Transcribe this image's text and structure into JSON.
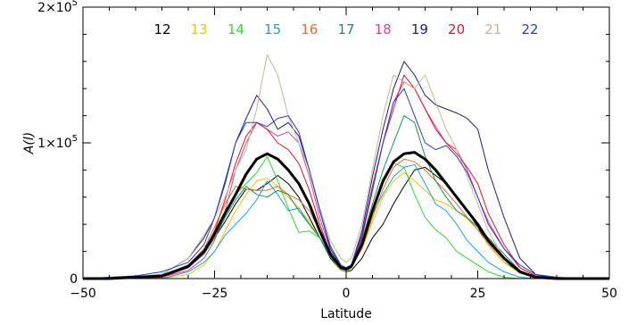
{
  "chart_data": {
    "type": "line",
    "title": "",
    "xlabel": "Latitude",
    "ylabel": "A(l)",
    "xlim": [
      -50,
      50
    ],
    "ylim": [
      0,
      200000
    ],
    "x_ticks": [
      -50,
      -25,
      0,
      25,
      50
    ],
    "x_tick_labels": [
      "−50",
      "−25",
      "0",
      "25",
      "50"
    ],
    "y_ticks": [
      0,
      100000,
      200000
    ],
    "y_tick_labels": [
      {
        "mantissa": "0",
        "exp": ""
      },
      {
        "mantissa": "1×10",
        "exp": "5"
      },
      {
        "mantissa": "2×10",
        "exp": "5"
      }
    ],
    "grid": false,
    "legend_position": "top-center",
    "series": [
      {
        "name": "12",
        "color": "#000000",
        "width": 1,
        "x": [
          -50,
          -45,
          -40,
          -35,
          -30,
          -27,
          -25,
          -23,
          -21,
          -19,
          -17,
          -15,
          -13,
          -11,
          -9,
          -7,
          -5,
          -3,
          -1,
          0,
          1,
          3,
          5,
          7,
          9,
          11,
          13,
          15,
          17,
          19,
          21,
          23,
          25,
          27,
          30,
          33,
          36,
          40,
          45,
          50
        ],
        "y": [
          0,
          0,
          0,
          2000,
          10000,
          20000,
          30000,
          42000,
          55000,
          66000,
          65000,
          70000,
          76000,
          70000,
          60000,
          45000,
          30000,
          15000,
          6000,
          5000,
          6000,
          15000,
          30000,
          40000,
          55000,
          68000,
          80000,
          82000,
          76000,
          70000,
          60000,
          50000,
          38000,
          25000,
          12000,
          5000,
          2000,
          0,
          0,
          0
        ]
      },
      {
        "name": "13",
        "color": "#f3c20a",
        "width": 1,
        "x": [
          -50,
          -45,
          -40,
          -35,
          -30,
          -27,
          -25,
          -23,
          -21,
          -19,
          -17,
          -15,
          -13,
          -11,
          -9,
          -7,
          -5,
          -3,
          -1,
          0,
          1,
          3,
          5,
          7,
          9,
          11,
          13,
          15,
          17,
          19,
          21,
          23,
          25,
          27,
          30,
          33,
          36,
          40,
          45,
          50
        ],
        "y": [
          0,
          0,
          0,
          0,
          3000,
          10000,
          20000,
          35000,
          50000,
          62000,
          72000,
          74000,
          68000,
          60000,
          52000,
          42000,
          30000,
          16000,
          6000,
          5000,
          8000,
          22000,
          42000,
          60000,
          72000,
          78000,
          72000,
          65000,
          58000,
          55000,
          50000,
          44000,
          36000,
          25000,
          12000,
          4000,
          1000,
          0,
          0,
          0
        ]
      },
      {
        "name": "14",
        "color": "#2edb2e",
        "width": 1,
        "x": [
          -50,
          -45,
          -40,
          -35,
          -30,
          -27,
          -25,
          -23,
          -21,
          -19,
          -17,
          -15,
          -13,
          -11,
          -9,
          -7,
          -5,
          -3,
          -1,
          0,
          1,
          3,
          5,
          7,
          9,
          11,
          13,
          15,
          17,
          19,
          21,
          23,
          25,
          27,
          30,
          33,
          36,
          40,
          45,
          50
        ],
        "y": [
          0,
          0,
          0,
          1000,
          8000,
          20000,
          35000,
          50000,
          62000,
          70000,
          78000,
          90000,
          72000,
          52000,
          34000,
          35000,
          30000,
          18000,
          8000,
          6000,
          9000,
          24000,
          48000,
          70000,
          85000,
          82000,
          62000,
          45000,
          36000,
          30000,
          20000,
          15000,
          10000,
          5000,
          1000,
          0,
          0,
          0,
          0,
          0
        ]
      },
      {
        "name": "15",
        "color": "#1aa3df",
        "width": 1,
        "x": [
          -50,
          -45,
          -40,
          -35,
          -30,
          -27,
          -25,
          -23,
          -21,
          -19,
          -17,
          -15,
          -13,
          -11,
          -9,
          -7,
          -5,
          -3,
          -1,
          0,
          1,
          3,
          5,
          7,
          9,
          11,
          13,
          15,
          17,
          19,
          21,
          23,
          25,
          27,
          30,
          33,
          36,
          40,
          45,
          50
        ],
        "y": [
          0,
          0,
          0,
          0,
          5000,
          12000,
          20000,
          32000,
          40000,
          48000,
          58000,
          72000,
          62000,
          50000,
          52000,
          40000,
          30000,
          17000,
          7000,
          6000,
          8000,
          25000,
          48000,
          62000,
          75000,
          82000,
          84000,
          70000,
          55000,
          50000,
          40000,
          28000,
          20000,
          12000,
          5000,
          1000,
          0,
          0,
          0,
          0
        ]
      },
      {
        "name": "16",
        "color": "#ef6a2a",
        "width": 1,
        "x": [
          -50,
          -45,
          -40,
          -35,
          -30,
          -27,
          -25,
          -23,
          -21,
          -19,
          -17,
          -15,
          -13,
          -11,
          -9,
          -7,
          -5,
          -3,
          -1,
          0,
          1,
          3,
          5,
          7,
          9,
          11,
          13,
          15,
          17,
          19,
          21,
          23,
          25,
          27,
          30,
          33,
          36,
          40,
          45,
          50
        ],
        "y": [
          0,
          0,
          0,
          2000,
          10000,
          22000,
          38000,
          55000,
          68000,
          66000,
          65000,
          65000,
          68000,
          62000,
          58000,
          50000,
          35000,
          18000,
          8000,
          7000,
          9000,
          22000,
          45000,
          66000,
          82000,
          88000,
          86000,
          80000,
          72000,
          64000,
          55000,
          45000,
          36000,
          26000,
          14000,
          5000,
          1000,
          0,
          0,
          0
        ]
      },
      {
        "name": "17",
        "color": "#1a8f63",
        "width": 1,
        "x": [
          -50,
          -45,
          -40,
          -35,
          -30,
          -27,
          -25,
          -23,
          -21,
          -19,
          -17,
          -15,
          -13,
          -11,
          -9,
          -7,
          -5,
          -3,
          -1,
          0,
          1,
          3,
          5,
          7,
          9,
          11,
          13,
          15,
          17,
          19,
          21,
          23,
          25,
          27,
          30,
          33,
          36,
          40,
          45,
          50
        ],
        "y": [
          0,
          0,
          0,
          1000,
          8000,
          18000,
          30000,
          45000,
          58000,
          68000,
          62000,
          60000,
          65000,
          62000,
          50000,
          40000,
          30000,
          16000,
          7000,
          6000,
          8000,
          28000,
          55000,
          80000,
          100000,
          120000,
          115000,
          90000,
          72000,
          60000,
          50000,
          45000,
          38000,
          30000,
          18000,
          6000,
          1000,
          0,
          0,
          0
        ]
      },
      {
        "name": "18",
        "color": "#e0409a",
        "width": 1,
        "x": [
          -50,
          -45,
          -40,
          -35,
          -30,
          -27,
          -25,
          -23,
          -21,
          -19,
          -17,
          -15,
          -13,
          -11,
          -9,
          -7,
          -5,
          -3,
          -1,
          0,
          1,
          3,
          5,
          7,
          9,
          11,
          13,
          15,
          17,
          19,
          21,
          23,
          25,
          27,
          30,
          33,
          36,
          40,
          45,
          50
        ],
        "y": [
          0,
          0,
          0,
          1000,
          6000,
          15000,
          28000,
          50000,
          80000,
          100000,
          115000,
          110000,
          105000,
          108000,
          100000,
          75000,
          45000,
          20000,
          8000,
          7000,
          9000,
          30000,
          65000,
          100000,
          130000,
          145000,
          140000,
          125000,
          112000,
          100000,
          95000,
          80000,
          60000,
          42000,
          22000,
          8000,
          2000,
          0,
          0,
          0
        ]
      },
      {
        "name": "19",
        "color": "#1a1a8c",
        "width": 1,
        "x": [
          -50,
          -45,
          -40,
          -35,
          -30,
          -27,
          -25,
          -23,
          -21,
          -19,
          -17,
          -15,
          -13,
          -11,
          -9,
          -7,
          -5,
          -3,
          -1,
          0,
          1,
          3,
          5,
          7,
          9,
          11,
          13,
          15,
          17,
          19,
          21,
          23,
          25,
          27,
          30,
          33,
          36,
          40,
          45,
          50
        ],
        "y": [
          0,
          0,
          1000,
          3000,
          15000,
          30000,
          45000,
          70000,
          100000,
          118000,
          135000,
          125000,
          110000,
          115000,
          105000,
          80000,
          50000,
          22000,
          9000,
          8000,
          10000,
          35000,
          75000,
          110000,
          140000,
          160000,
          150000,
          135000,
          128000,
          125000,
          122000,
          118000,
          110000,
          80000,
          45000,
          15000,
          3000,
          0,
          0,
          0
        ]
      },
      {
        "name": "20",
        "color": "#e8141e",
        "width": 1,
        "x": [
          -50,
          -45,
          -40,
          -35,
          -30,
          -27,
          -25,
          -23,
          -21,
          -19,
          -17,
          -15,
          -13,
          -11,
          -9,
          -7,
          -5,
          -3,
          -1,
          0,
          1,
          3,
          5,
          7,
          9,
          11,
          13,
          15,
          17,
          19,
          21,
          23,
          25,
          27,
          30,
          33,
          36,
          40,
          45,
          50
        ],
        "y": [
          0,
          0,
          0,
          1000,
          8000,
          20000,
          35000,
          58000,
          85000,
          105000,
          115000,
          110000,
          100000,
          95000,
          85000,
          65000,
          40000,
          18000,
          8000,
          7000,
          9000,
          30000,
          65000,
          100000,
          125000,
          150000,
          140000,
          125000,
          110000,
          100000,
          92000,
          82000,
          70000,
          48000,
          25000,
          8000,
          2000,
          0,
          0,
          0
        ]
      },
      {
        "name": "21",
        "color": "#c7b58f",
        "width": 1,
        "x": [
          -50,
          -45,
          -40,
          -35,
          -30,
          -27,
          -25,
          -23,
          -21,
          -19,
          -17,
          -15,
          -13,
          -11,
          -9,
          -7,
          -5,
          -3,
          -1,
          0,
          1,
          3,
          5,
          7,
          9,
          11,
          13,
          15,
          17,
          19,
          21,
          23,
          25,
          27,
          30,
          33,
          36,
          40,
          45,
          50
        ],
        "y": [
          0,
          0,
          1000,
          3000,
          15000,
          32000,
          45000,
          60000,
          80000,
          95000,
          125000,
          165000,
          150000,
          120000,
          100000,
          80000,
          52000,
          28000,
          15000,
          12000,
          15000,
          40000,
          80000,
          120000,
          150000,
          145000,
          140000,
          150000,
          130000,
          110000,
          95000,
          75000,
          55000,
          35000,
          15000,
          5000,
          1000,
          0,
          0,
          0
        ]
      },
      {
        "name": "22",
        "color": "#1f3fd6",
        "width": 1,
        "x": [
          -50,
          -45,
          -40,
          -35,
          -30,
          -27,
          -25,
          -23,
          -21,
          -19,
          -17,
          -15,
          -13,
          -11,
          -9,
          -7,
          -5,
          -3,
          -1,
          0,
          1,
          3,
          5,
          7,
          9,
          11,
          13,
          15,
          17,
          19,
          21,
          23,
          25,
          27,
          30,
          33,
          36,
          40,
          45,
          50
        ],
        "y": [
          0,
          1000,
          2000,
          5000,
          12000,
          25000,
          45000,
          72000,
          100000,
          115000,
          115000,
          112000,
          118000,
          120000,
          108000,
          80000,
          50000,
          24000,
          10000,
          8000,
          10000,
          32000,
          68000,
          100000,
          130000,
          140000,
          120000,
          100000,
          95000,
          98000,
          90000,
          78000,
          60000,
          40000,
          22000,
          10000,
          3000,
          1000,
          0,
          0
        ]
      },
      {
        "name": "",
        "color": "#000000",
        "width": 3,
        "x": [
          -50,
          -45,
          -40,
          -35,
          -30,
          -27,
          -25,
          -23,
          -21,
          -19,
          -17,
          -15,
          -13,
          -11,
          -9,
          -7,
          -5,
          -3,
          -1,
          0,
          1,
          3,
          5,
          7,
          9,
          11,
          13,
          15,
          17,
          19,
          21,
          23,
          25,
          27,
          30,
          33,
          36,
          40,
          45,
          50
        ],
        "y": [
          0,
          0,
          1000,
          2000,
          9000,
          20000,
          33000,
          48000,
          62000,
          77000,
          88000,
          92000,
          88000,
          80000,
          70000,
          55000,
          35000,
          18000,
          8000,
          7000,
          9000,
          25000,
          50000,
          72000,
          86000,
          92000,
          93000,
          88000,
          80000,
          70000,
          60000,
          50000,
          40000,
          28000,
          15000,
          5000,
          1000,
          0,
          0,
          0
        ]
      }
    ]
  }
}
